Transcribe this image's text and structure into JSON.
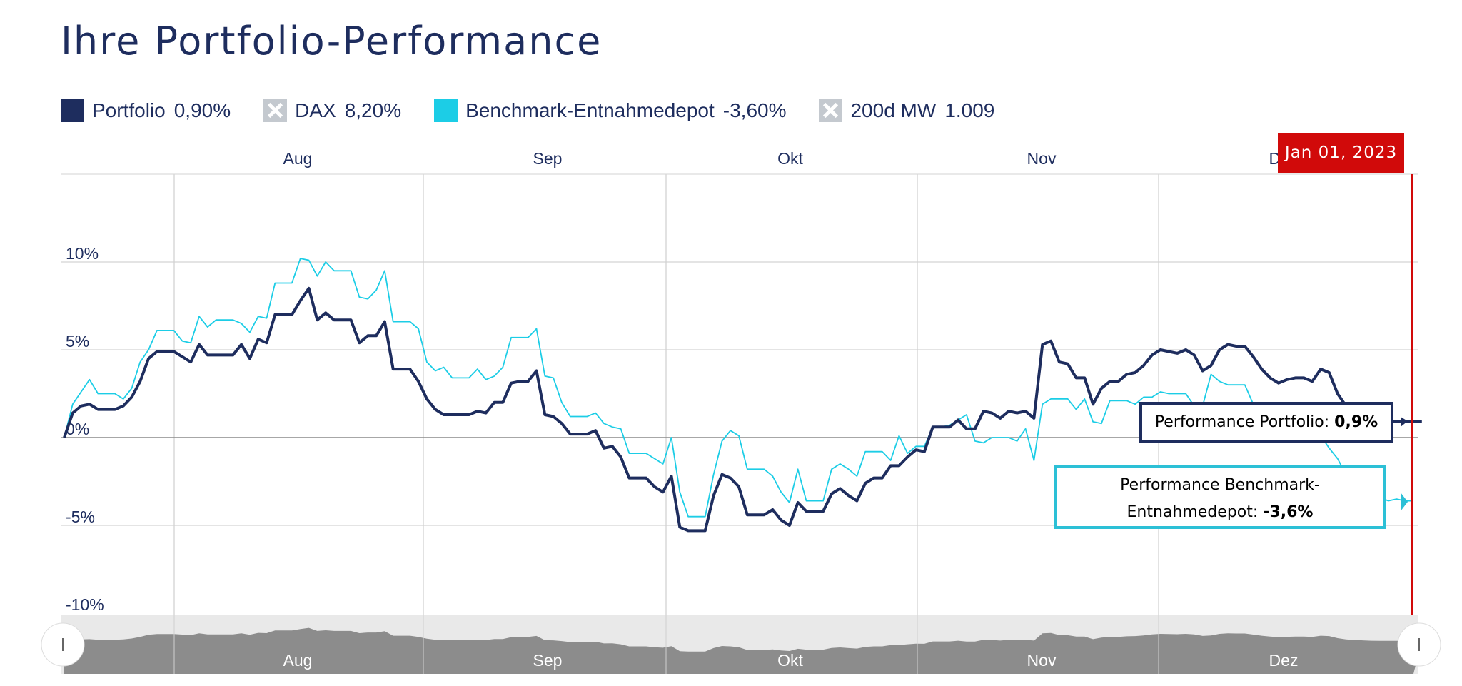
{
  "title": "Ihre Portfolio-Performance",
  "legend": [
    {
      "label": "Portfolio",
      "value": "0,90%",
      "color": "#1e2d5e",
      "enabled": true
    },
    {
      "label": "DAX",
      "value": "8,20%",
      "color": "#c4c9cf",
      "enabled": false
    },
    {
      "label": "Benchmark-Entnahmedepot",
      "value": "-3,60%",
      "color": "#1ccde6",
      "enabled": true
    },
    {
      "label": "200d MW",
      "value": "1.009",
      "color": "#c4c9cf",
      "enabled": false
    }
  ],
  "date_tag": "Jan 01, 2023",
  "tooltips": {
    "portfolio_label": "Performance Portfolio:",
    "portfolio_value": "0,9%",
    "bench_label_1": "Performance Benchmark-",
    "bench_label_2": "Entnahmedepot:",
    "bench_value": "-3,6%"
  },
  "chart_data": {
    "type": "line",
    "title": "Ihre Portfolio-Performance",
    "x_month_labels": [
      "Aug",
      "Sep",
      "Okt",
      "Nov",
      "Dez"
    ],
    "y_tick_labels": [
      "10%",
      "5%",
      "0%",
      "-5%",
      "-10%"
    ],
    "y_ticks": [
      10,
      5,
      0,
      -5,
      -10
    ],
    "ylim": [
      -10,
      15
    ],
    "xlim": [
      0,
      160
    ],
    "navigator_labels": [
      "Aug",
      "Sep",
      "Okt",
      "Nov",
      "Dez"
    ],
    "series": [
      {
        "name": "Portfolio",
        "color": "#1e2d5e",
        "values": [
          0,
          1.4,
          1.8,
          1.9,
          1.6,
          1.6,
          1.6,
          1.8,
          2.3,
          3.2,
          4.5,
          4.9,
          4.9,
          4.9,
          4.6,
          4.3,
          5.3,
          4.7,
          4.7,
          4.7,
          4.7,
          5.3,
          4.5,
          5.6,
          5.4,
          7,
          7,
          7,
          7.8,
          8.5,
          6.7,
          7.1,
          6.7,
          6.7,
          6.7,
          5.4,
          5.8,
          5.8,
          6.6,
          3.9,
          3.9,
          3.9,
          3.2,
          2.2,
          1.6,
          1.3,
          1.3,
          1.3,
          1.3,
          1.5,
          1.4,
          2,
          2,
          3.1,
          3.2,
          3.2,
          3.8,
          1.3,
          1.2,
          0.8,
          0.2,
          0.2,
          0.2,
          0.4,
          -0.6,
          -0.5,
          -1.1,
          -2.3,
          -2.3,
          -2.3,
          -2.8,
          -3.1,
          -2.2,
          -5.1,
          -5.3,
          -5.3,
          -5.3,
          -3.3,
          -2.1,
          -2.3,
          -2.8,
          -4.4,
          -4.4,
          -4.4,
          -4.1,
          -4.7,
          -5,
          -3.7,
          -4.2,
          -4.2,
          -4.2,
          -3.2,
          -2.9,
          -3.3,
          -3.6,
          -2.6,
          -2.3,
          -2.3,
          -1.6,
          -1.6,
          -1.1,
          -0.7,
          -0.8,
          0.6,
          0.6,
          0.6,
          1,
          0.5,
          0.5,
          1.5,
          1.4,
          1.1,
          1.5,
          1.4,
          1.5,
          1.1,
          5.3,
          5.5,
          4.3,
          4.2,
          3.4,
          3.4,
          1.9,
          2.8,
          3.2,
          3.2,
          3.6,
          3.7,
          4.1,
          4.7,
          5,
          4.9,
          4.8,
          5,
          4.7,
          3.8,
          4.1,
          5,
          5.3,
          5.2,
          5.2,
          4.6,
          3.9,
          3.4,
          3.1,
          3.3,
          3.4,
          3.4,
          3.2,
          3.9,
          3.7,
          2.5,
          1.8,
          1.4,
          1.2,
          1,
          0.9,
          0.9,
          0.9,
          0.9,
          0.9,
          0.9
        ]
      },
      {
        "name": "Benchmark-Entnahmedepot",
        "color": "#1ccde6",
        "values": [
          0,
          1.9,
          2.6,
          3.3,
          2.5,
          2.5,
          2.5,
          2.2,
          2.8,
          4.3,
          5,
          6.1,
          6.1,
          6.1,
          5.5,
          5.4,
          6.9,
          6.3,
          6.7,
          6.7,
          6.7,
          6.5,
          6,
          6.9,
          6.8,
          8.8,
          8.8,
          8.8,
          10.2,
          10.1,
          9.2,
          10,
          9.5,
          9.5,
          9.5,
          8,
          7.9,
          8.4,
          9.5,
          6.6,
          6.6,
          6.6,
          6.2,
          4.3,
          3.8,
          4,
          3.4,
          3.4,
          3.4,
          3.9,
          3.3,
          3.5,
          4,
          5.7,
          5.7,
          5.7,
          6.2,
          3.5,
          3.4,
          2,
          1.2,
          1.2,
          1.2,
          1.4,
          0.8,
          0.6,
          0.5,
          -0.9,
          -0.9,
          -0.9,
          -1.2,
          -1.5,
          0,
          -3.1,
          -4.5,
          -4.5,
          -4.5,
          -2.1,
          -0.2,
          0.4,
          0.1,
          -1.8,
          -1.8,
          -1.8,
          -2.2,
          -3.1,
          -3.7,
          -1.8,
          -3.6,
          -3.6,
          -3.6,
          -1.8,
          -1.5,
          -1.8,
          -2.2,
          -0.8,
          -0.8,
          -0.8,
          -1.3,
          0.1,
          -0.9,
          -0.5,
          -0.5,
          0.6,
          0.6,
          0.7,
          1,
          1.3,
          -0.2,
          -0.3,
          0,
          0,
          0,
          -0.2,
          0.5,
          -1.3,
          1.9,
          2.2,
          2.2,
          2.2,
          1.6,
          2.2,
          0.9,
          0.8,
          2.1,
          2.1,
          2.1,
          1.9,
          2.3,
          2.3,
          2.6,
          2.5,
          2.5,
          2.5,
          1.8,
          1.8,
          3.6,
          3.2,
          3,
          3,
          3,
          1.9,
          0.7,
          0.8,
          1.1,
          1,
          0.9,
          0.8,
          0.4,
          0.1,
          -0.6,
          -1.2,
          -2.1,
          -2.4,
          -2.8,
          -3,
          -3.4,
          -3.6,
          -3.5,
          -3.6,
          -3.6
        ]
      }
    ]
  }
}
